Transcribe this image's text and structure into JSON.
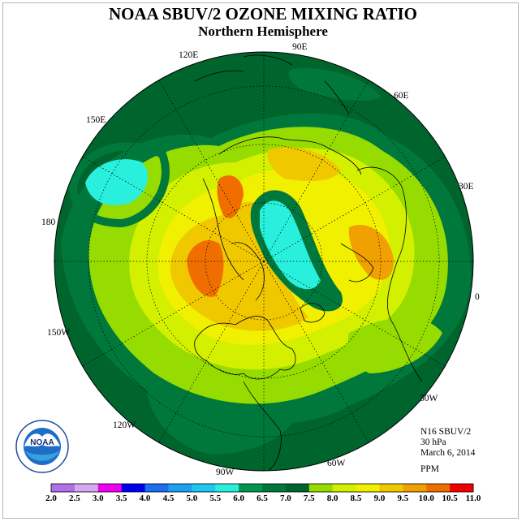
{
  "title": "NOAA SBUV/2 OZONE MIXING RATIO",
  "subtitle": "Northern Hemisphere",
  "longitude_labels": [
    "90E",
    "60E",
    "30E",
    "0",
    "30W",
    "60W",
    "90W",
    "120W",
    "150W",
    "180",
    "150E",
    "120E"
  ],
  "info": {
    "instrument": "N16 SBUV/2",
    "level": "30 hPa",
    "date": "March 6, 2014",
    "units": "PPM"
  },
  "logo": {
    "text": "NOAA",
    "ring_text": "NATIONAL OCEANIC AND ATMOSPHERIC ADMINISTRATION · U.S. DEPARTMENT OF COMMERCE"
  },
  "legend": {
    "values": [
      "2.0",
      "2.5",
      "3.0",
      "3.5",
      "4.0",
      "4.5",
      "5.0",
      "5.5",
      "6.0",
      "6.5",
      "7.0",
      "7.5",
      "8.0",
      "8.5",
      "9.0",
      "9.5",
      "10.0",
      "10.5",
      "11.0"
    ],
    "colors": [
      "#b070e8",
      "#d7a9f2",
      "#f000f0",
      "#0000f0",
      "#1e6ef0",
      "#1ea0f0",
      "#1ec8f0",
      "#28f0dc",
      "#009650",
      "#00783c",
      "#00642d",
      "#96dc00",
      "#d2f000",
      "#f0f000",
      "#f0c800",
      "#f0a000",
      "#f06e00",
      "#f00000",
      "#8c5a3c"
    ]
  },
  "colors": {
    "field_low": "#00642d",
    "field_mid": "#96dc00",
    "field_high": "#f0a000",
    "field_max": "#f06e00",
    "field_min": "#28f0dc"
  }
}
